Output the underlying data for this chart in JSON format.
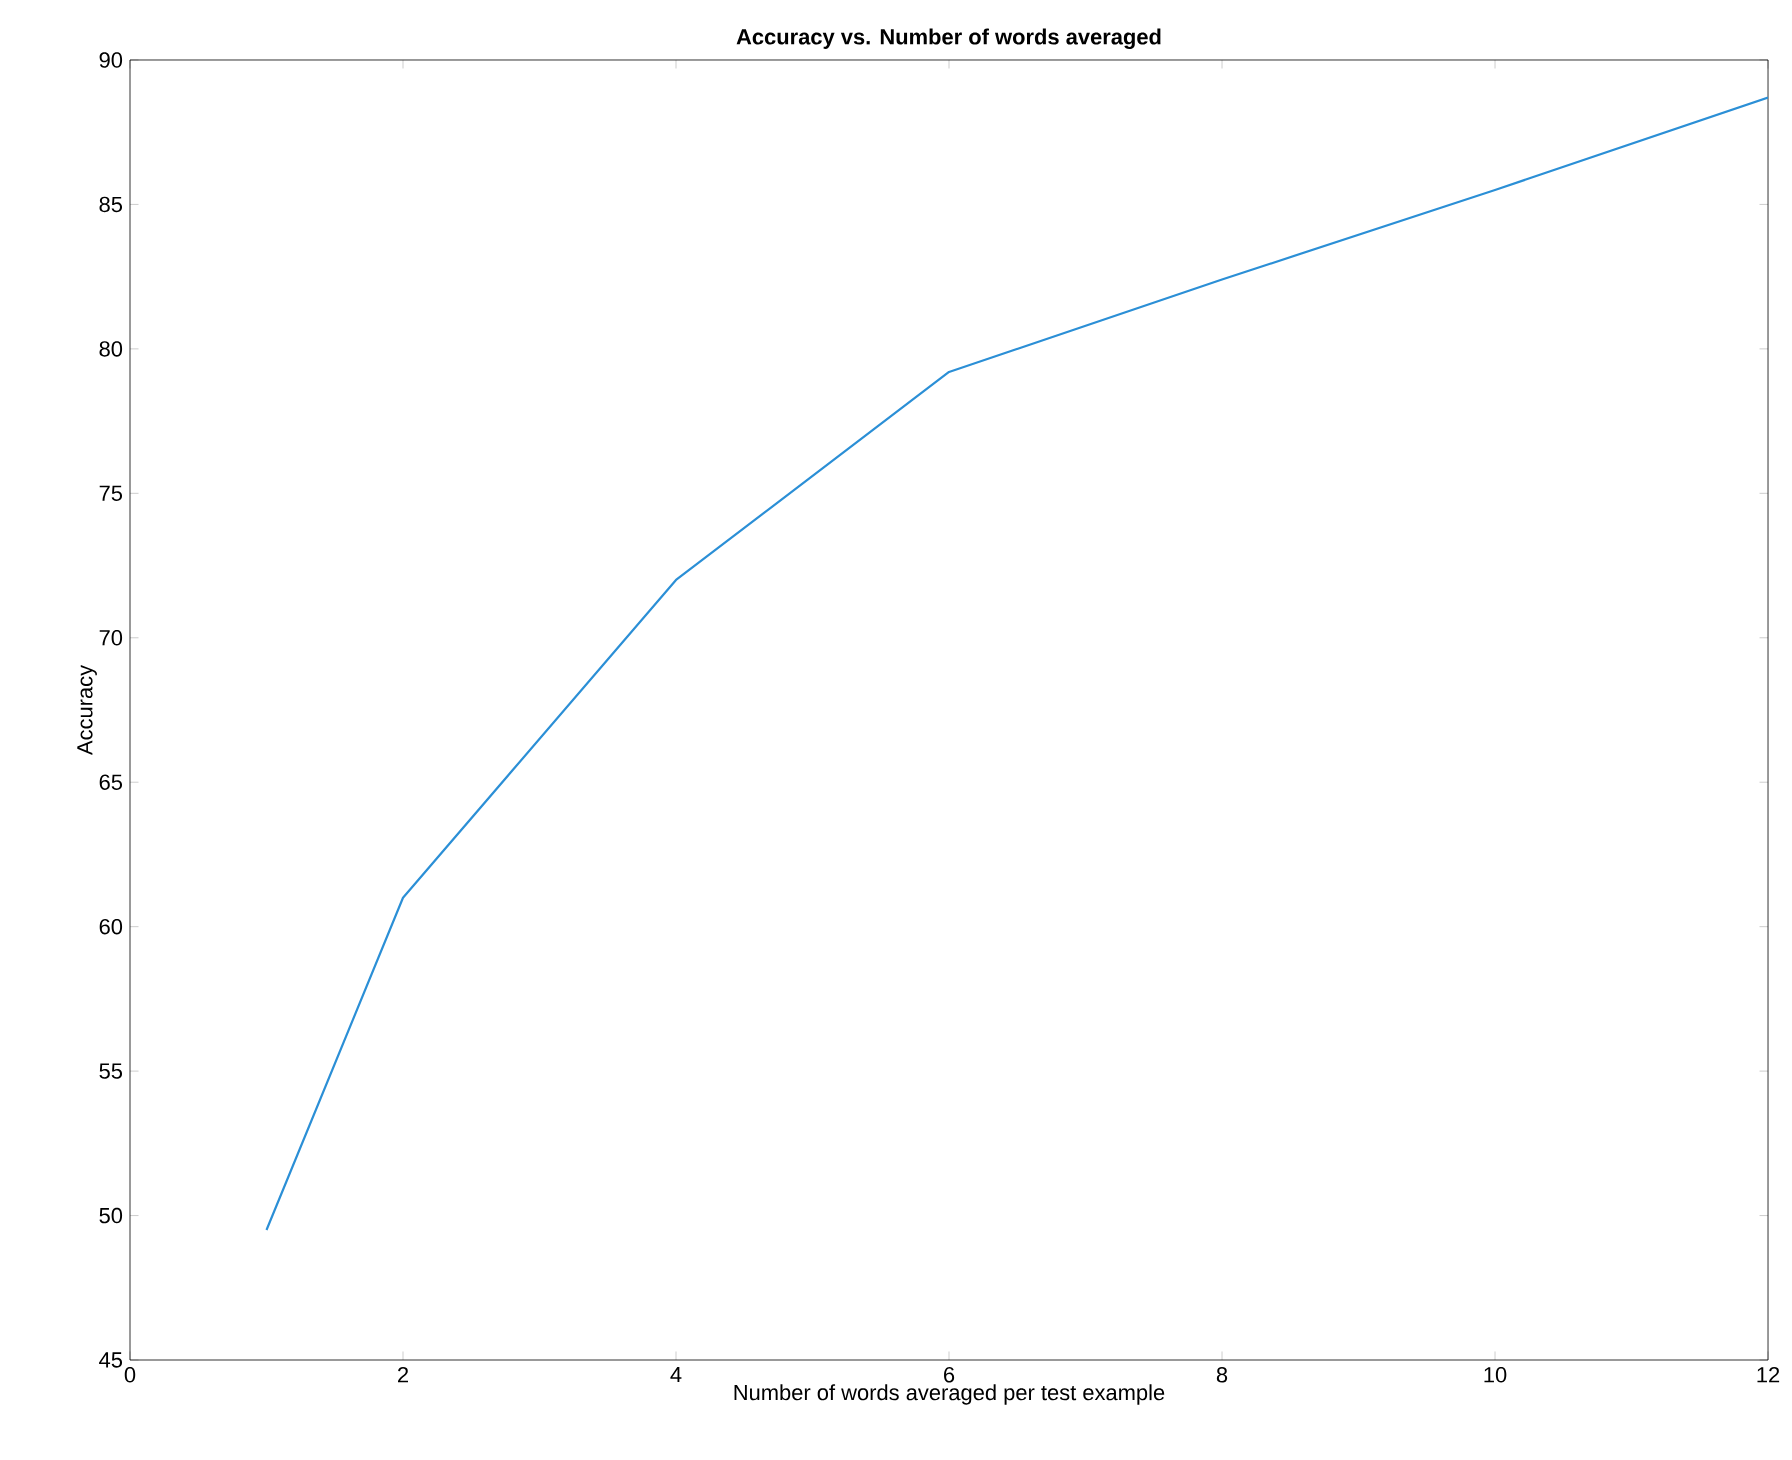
{
  "chart_data": {
    "type": "line",
    "title": "Accuracy vs. Number of words averaged",
    "xlabel": "Number of words averaged per test example",
    "ylabel": "Accuracy",
    "x": [
      1,
      2,
      4,
      6,
      8,
      10,
      12
    ],
    "series": [
      {
        "color": "#2b8fd6",
        "values": [
          49.5,
          61,
          72,
          79.2,
          82.4,
          85.5,
          88.7
        ]
      }
    ],
    "xlim": [
      0,
      12
    ],
    "ylim": [
      45,
      90
    ],
    "xticks": [
      0,
      2,
      4,
      6,
      8,
      10,
      12
    ],
    "yticks": [
      45,
      50,
      55,
      60,
      65,
      70,
      75,
      80,
      85,
      90
    ],
    "marker": "none",
    "line_style": "solid"
  }
}
